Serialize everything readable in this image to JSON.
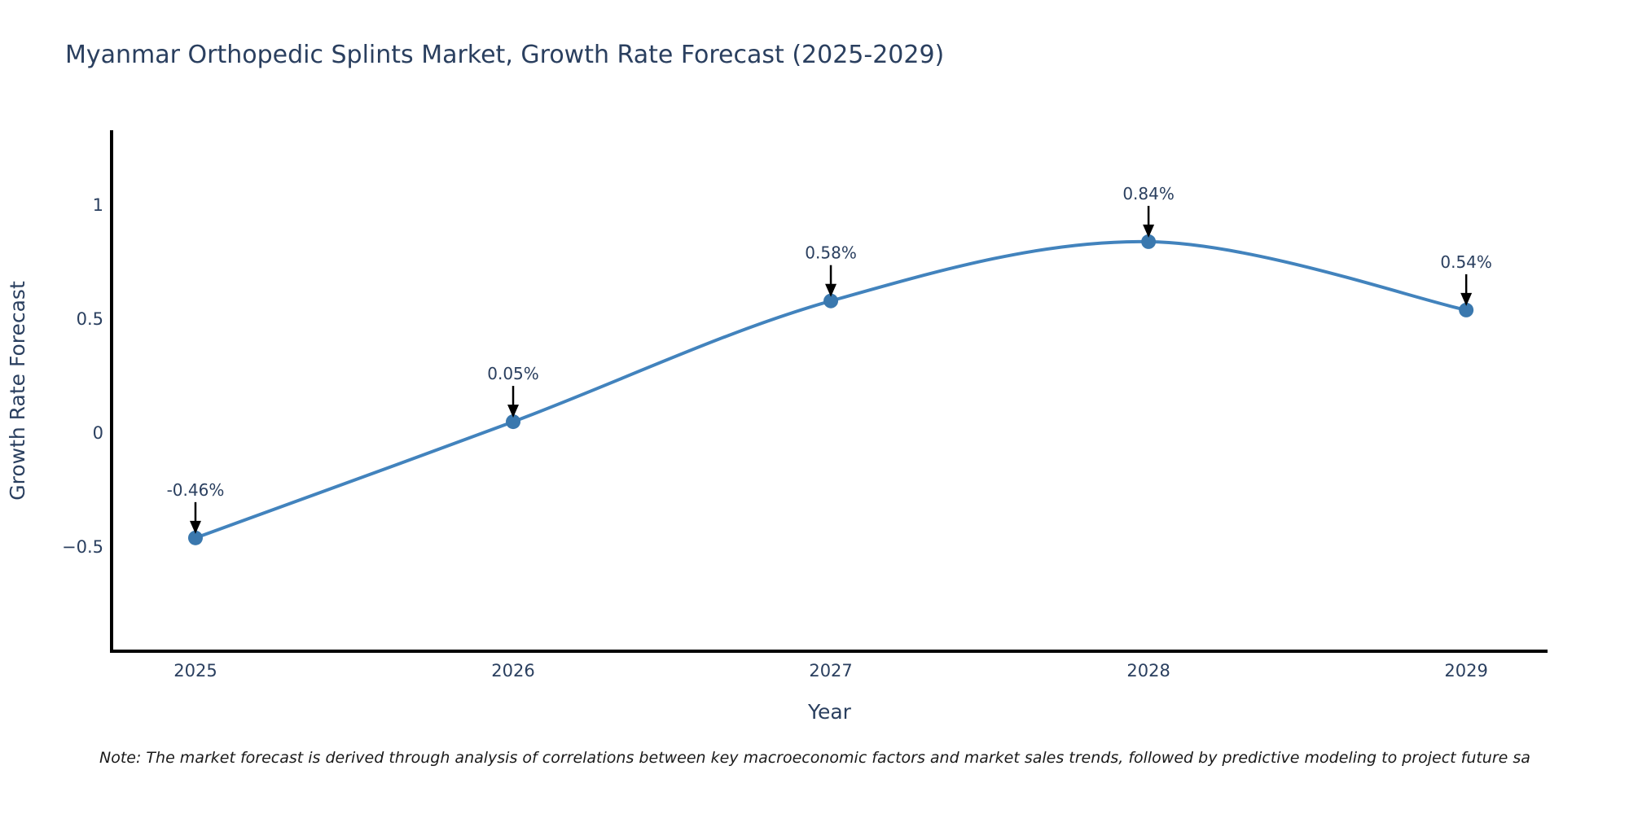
{
  "note": "Note: The market forecast is derived through analysis of correlations between key macroeconomic factors and market sales trends, followed by predictive modeling to project future sa",
  "chart_data": {
    "type": "line",
    "title": "Myanmar Orthopedic Splints Market, Growth Rate Forecast (2025-2029)",
    "xlabel": "Year",
    "ylabel": "Growth Rate Forecast",
    "x": [
      2025,
      2026,
      2027,
      2028,
      2029
    ],
    "y": [
      -0.46,
      0.05,
      0.58,
      0.84,
      0.54
    ],
    "point_labels": [
      "-0.46%",
      "0.05%",
      "0.58%",
      "0.84%",
      "0.54%"
    ],
    "xtick_labels": [
      "2025",
      "2026",
      "2027",
      "2028",
      "2029"
    ],
    "ytick_values": [
      -0.5,
      0,
      0.5,
      1
    ],
    "ytick_labels": [
      "−0.5",
      "0",
      "0.5",
      "1"
    ],
    "xlim": [
      2024.736,
      2029.256
    ],
    "ylim": [
      -0.957,
      1.329
    ],
    "line_shape": "spline",
    "grid": false,
    "legend": "none",
    "marker_size": 9,
    "colors": {
      "line": "#4283bd",
      "marker": "#3a78ae",
      "axis": "#000000",
      "text": "#2a3f5f",
      "annotation_arrow": "#000000",
      "note_text": "#1a1a1a",
      "background": "#ffffff"
    }
  }
}
